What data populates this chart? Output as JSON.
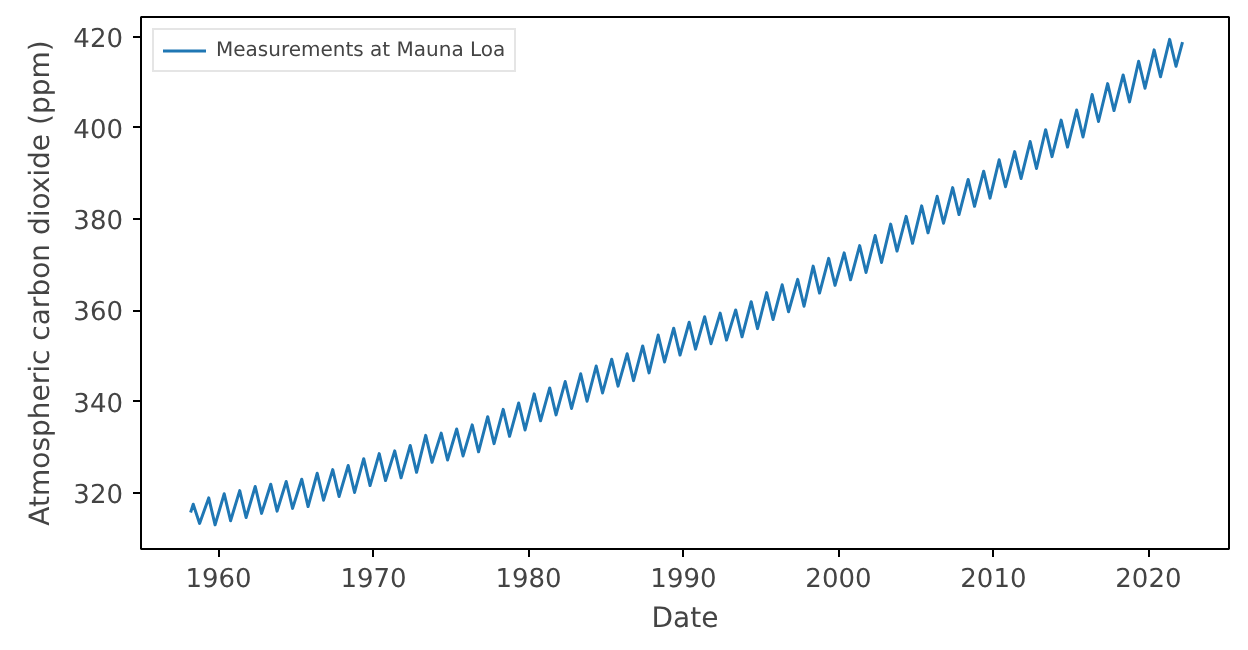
{
  "chart_data": {
    "type": "line",
    "xlabel": "Date",
    "ylabel": "Atmospheric carbon dioxide (ppm)",
    "xlim": [
      1955.0,
      2025.2
    ],
    "ylim": [
      307.7,
      424.3
    ],
    "xticks": [
      1960,
      1970,
      1980,
      1990,
      2000,
      2010,
      2020
    ],
    "yticks": [
      320,
      340,
      360,
      380,
      400,
      420
    ],
    "grid": false,
    "legend": "top left",
    "line_style": "solid",
    "marker": "none",
    "series": [
      {
        "name": "Measurements at Mauna Loa",
        "color": "#1f77b4",
        "x": [
          1958.2,
          1958.37,
          1958.78,
          1959.37,
          1959.78,
          1960.37,
          1960.78,
          1961.37,
          1961.78,
          1962.37,
          1962.78,
          1963.37,
          1963.78,
          1964.37,
          1964.78,
          1965.37,
          1965.78,
          1966.37,
          1966.78,
          1967.37,
          1967.78,
          1968.37,
          1968.78,
          1969.37,
          1969.78,
          1970.37,
          1970.78,
          1971.37,
          1971.78,
          1972.37,
          1972.78,
          1973.37,
          1973.78,
          1974.37,
          1974.78,
          1975.37,
          1975.78,
          1976.37,
          1976.78,
          1977.37,
          1977.78,
          1978.37,
          1978.78,
          1979.37,
          1979.78,
          1980.37,
          1980.78,
          1981.37,
          1981.78,
          1982.37,
          1982.78,
          1983.37,
          1983.78,
          1984.37,
          1984.78,
          1985.37,
          1985.78,
          1986.37,
          1986.78,
          1987.37,
          1987.78,
          1988.37,
          1988.78,
          1989.37,
          1989.78,
          1990.37,
          1990.78,
          1991.37,
          1991.78,
          1992.37,
          1992.78,
          1993.37,
          1993.78,
          1994.37,
          1994.78,
          1995.37,
          1995.78,
          1996.37,
          1996.78,
          1997.37,
          1997.78,
          1998.37,
          1998.78,
          1999.37,
          1999.78,
          2000.37,
          2000.78,
          2001.37,
          2001.78,
          2002.37,
          2002.78,
          2003.37,
          2003.78,
          2004.37,
          2004.78,
          2005.37,
          2005.78,
          2006.37,
          2006.78,
          2007.37,
          2007.78,
          2008.37,
          2008.78,
          2009.37,
          2009.78,
          2010.37,
          2010.78,
          2011.37,
          2011.78,
          2012.37,
          2012.78,
          2013.37,
          2013.78,
          2014.37,
          2014.78,
          2015.37,
          2015.78,
          2016.37,
          2016.78,
          2017.37,
          2017.78,
          2018.37,
          2018.78,
          2019.37,
          2019.78,
          2020.37,
          2020.78,
          2021.37,
          2021.78,
          2022.2
        ],
        "values": [
          315.7,
          317.5,
          313.3,
          318.9,
          313.0,
          319.8,
          313.9,
          320.5,
          314.6,
          321.4,
          315.5,
          321.9,
          316.0,
          322.5,
          316.6,
          323.0,
          317.0,
          324.3,
          318.4,
          325.1,
          319.2,
          326.0,
          320.1,
          327.5,
          321.6,
          328.6,
          322.7,
          329.2,
          323.3,
          330.4,
          324.5,
          332.6,
          326.7,
          333.1,
          327.2,
          334.0,
          328.1,
          334.9,
          329.0,
          336.7,
          330.8,
          338.3,
          332.4,
          339.7,
          333.8,
          341.7,
          335.8,
          343.0,
          337.1,
          344.4,
          338.5,
          346.1,
          340.1,
          347.8,
          341.9,
          349.3,
          343.4,
          350.5,
          344.6,
          352.2,
          346.3,
          354.6,
          348.7,
          356.1,
          350.2,
          357.4,
          351.5,
          358.6,
          352.7,
          359.4,
          353.5,
          360.1,
          354.2,
          361.9,
          356.0,
          363.9,
          358.0,
          365.6,
          359.7,
          366.8,
          360.9,
          369.7,
          363.8,
          371.4,
          365.5,
          372.6,
          366.7,
          374.2,
          368.3,
          376.4,
          370.5,
          378.9,
          373.0,
          380.6,
          374.7,
          382.9,
          377.0,
          385.0,
          379.1,
          386.9,
          381.0,
          388.7,
          382.8,
          390.5,
          384.6,
          393.0,
          387.1,
          394.8,
          388.9,
          397.0,
          391.1,
          399.6,
          393.7,
          401.7,
          395.8,
          403.9,
          398.0,
          407.3,
          401.4,
          409.7,
          403.8,
          411.6,
          405.7,
          414.6,
          408.7,
          417.1,
          411.2,
          419.4,
          413.5,
          418.8
        ]
      }
    ]
  }
}
